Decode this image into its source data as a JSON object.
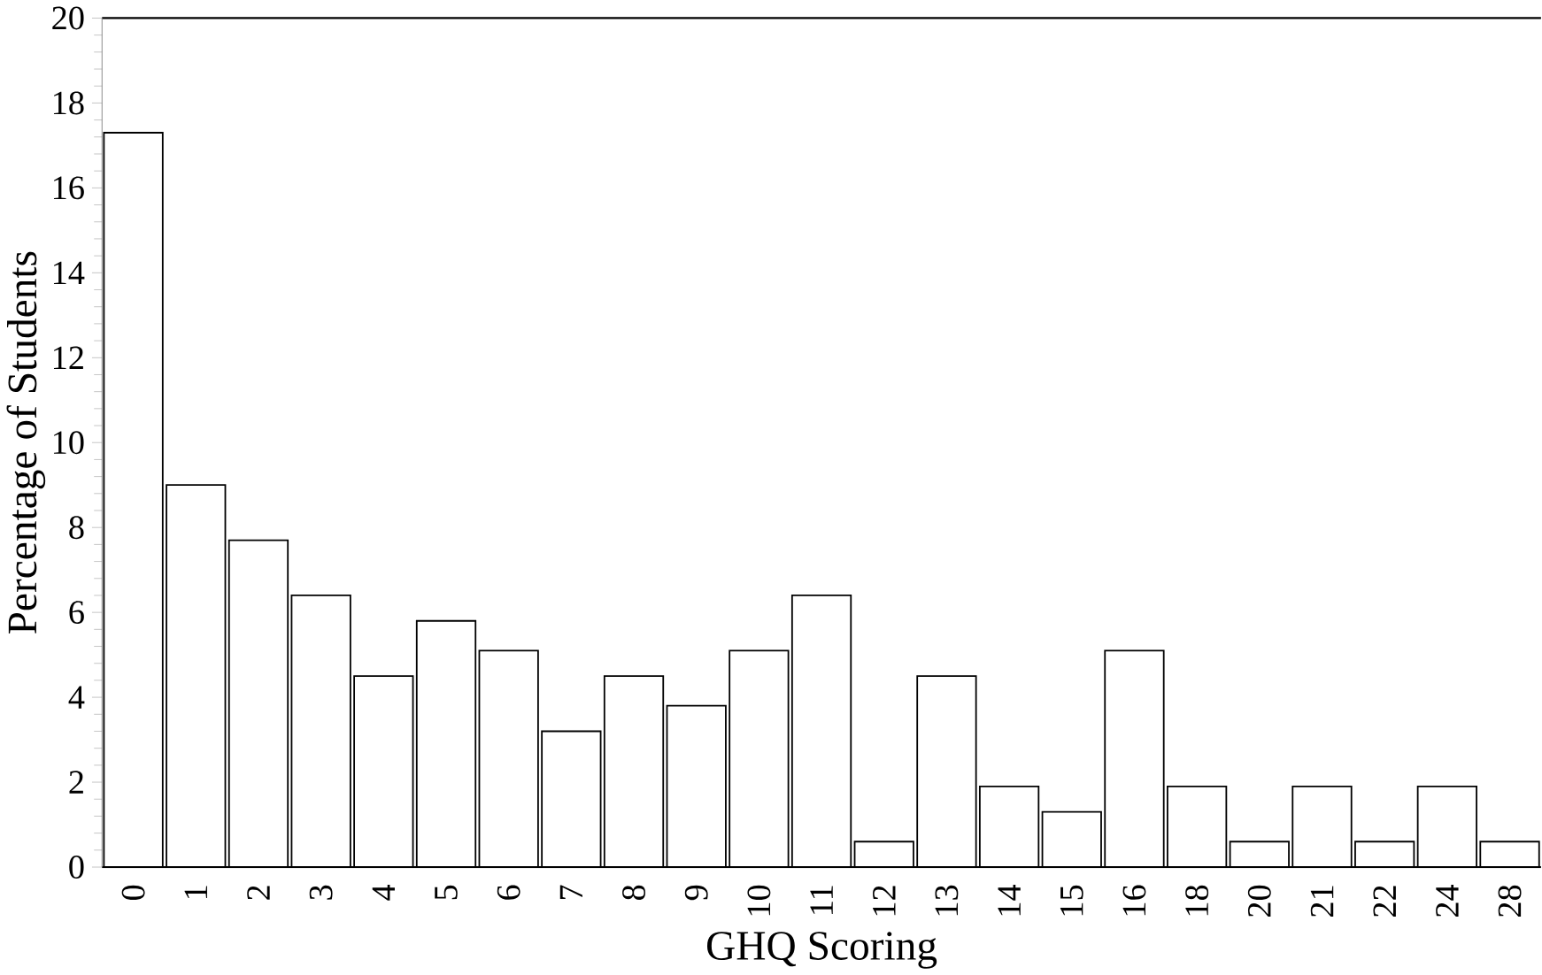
{
  "chart_data": {
    "type": "bar",
    "xlabel": "GHQ Scoring",
    "ylabel": "Percentage of Students",
    "categories": [
      "0",
      "1",
      "2",
      "3",
      "4",
      "5",
      "6",
      "7",
      "8",
      "9",
      "10",
      "11",
      "12",
      "13",
      "14",
      "15",
      "16",
      "18",
      "20",
      "21",
      "22",
      "24",
      "28"
    ],
    "values": [
      17.3,
      9.0,
      7.7,
      6.4,
      4.5,
      5.8,
      5.1,
      3.2,
      4.5,
      3.8,
      5.1,
      6.4,
      0.6,
      4.5,
      1.9,
      1.3,
      5.1,
      1.9,
      0.6,
      1.9,
      0.6,
      1.9,
      0.6
    ],
    "color": "#ffffff",
    "ylim": [
      0,
      20
    ],
    "yticks": [
      0,
      2,
      4,
      6,
      8,
      10,
      12,
      14,
      16,
      18,
      20
    ],
    "grid": false
  }
}
